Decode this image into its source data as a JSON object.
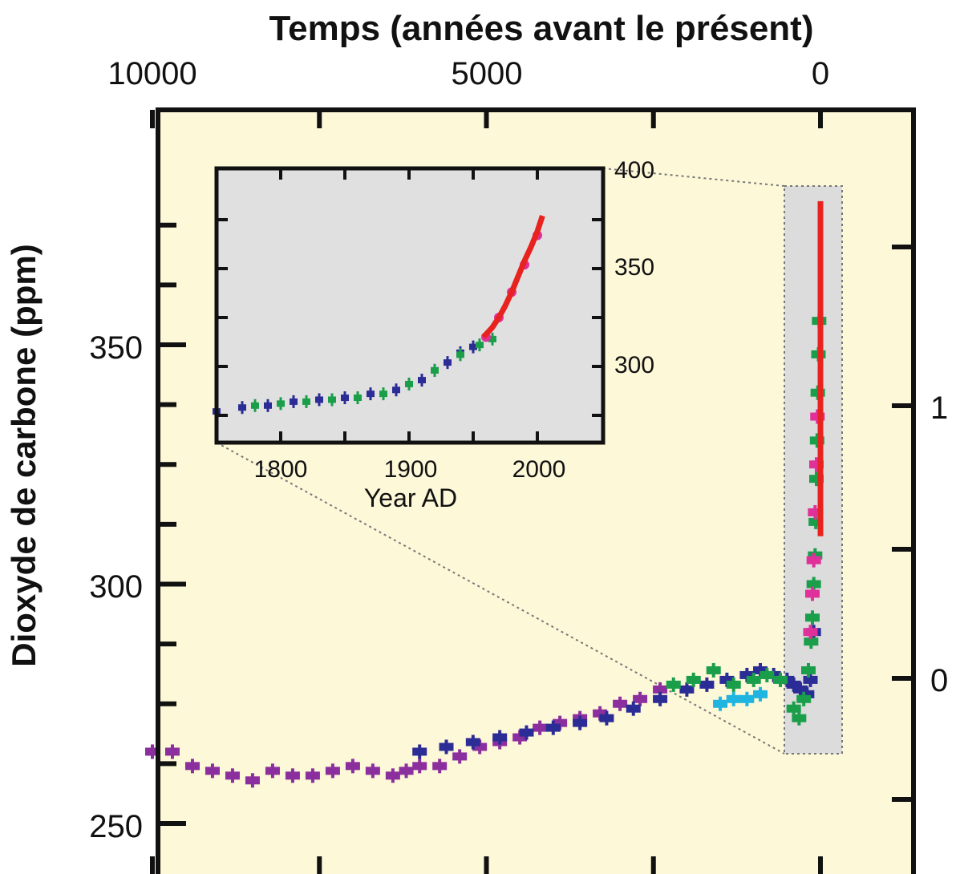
{
  "chart_data": [
    {
      "type": "scatter",
      "title": "Temps (années avant le présent)",
      "ylabel": "Dioxyde de carbone (ppm)",
      "x_ticks": [
        "10000",
        "5000",
        "0"
      ],
      "xlim": [
        10000,
        -300
      ],
      "ylim": [
        245,
        395
      ],
      "y_ticks": [
        "250",
        "300",
        "350"
      ],
      "right_axis": {
        "ticks": [
          "0",
          "1"
        ]
      },
      "background": "#fdf8d8",
      "series": [
        {
          "color": "#8b2f9e",
          "x": [
            10000,
            9700,
            9400,
            9100,
            8800,
            8500,
            8200,
            7900,
            7600,
            7300,
            7000,
            6700,
            6400,
            6200,
            6000,
            5700,
            5400,
            5100,
            4800,
            4500,
            4200,
            3900,
            3600,
            3300,
            3000,
            2700,
            2400
          ],
          "y": [
            265,
            265,
            262,
            261,
            260,
            259,
            261,
            260,
            260,
            261,
            262,
            261,
            260,
            261,
            262,
            262,
            264,
            266,
            267,
            268,
            270,
            271,
            272,
            273,
            275,
            276,
            278
          ]
        },
        {
          "color": "#2b2c96",
          "x": [
            6000,
            5600,
            5200,
            4800,
            4400,
            4000,
            3600,
            3200,
            2800,
            2400,
            2000,
            1700,
            1400,
            1100,
            900,
            700,
            500,
            400,
            300,
            200,
            150,
            100
          ],
          "y": [
            265,
            266,
            267,
            268,
            269,
            270,
            271,
            272,
            274,
            276,
            278,
            279,
            280,
            281,
            282,
            281,
            280,
            279,
            278,
            277,
            280,
            290
          ]
        },
        {
          "color": "#1a9e4a",
          "x": [
            2200,
            1900,
            1600,
            1300,
            1000,
            800,
            600,
            400,
            320,
            250,
            180,
            140,
            120,
            100,
            80,
            70,
            60,
            50,
            40,
            30,
            20
          ],
          "y": [
            279,
            280,
            282,
            279,
            280,
            281,
            280,
            274,
            272,
            276,
            282,
            288,
            293,
            300,
            306,
            313,
            322,
            330,
            340,
            348,
            355
          ]
        },
        {
          "color": "#1fb5e0",
          "x": [
            1500,
            1300,
            1100,
            900
          ],
          "y": [
            275,
            276,
            276,
            277
          ]
        },
        {
          "color": "#e0309a",
          "x": [
            150,
            120,
            100,
            80,
            60,
            45
          ],
          "y": [
            290,
            298,
            305,
            315,
            325,
            335
          ]
        },
        {
          "color": "#e8231f",
          "x": [
            0,
            0,
            0,
            0,
            0
          ],
          "y": [
            310,
            330,
            350,
            370,
            380
          ]
        }
      ]
    },
    {
      "type": "scatter",
      "xlabel": "Year AD",
      "x_ticks": [
        "1800",
        "1900",
        "2000"
      ],
      "y_ticks": [
        "300",
        "350",
        "400"
      ],
      "xlim": [
        1740,
        2050
      ],
      "ylim": [
        270,
        400
      ],
      "background": "#e0e0e0",
      "series": [
        {
          "color": "#2b2c96",
          "x": [
            1750,
            1770,
            1790,
            1810,
            1830,
            1850,
            1870,
            1890,
            1910,
            1920,
            1930,
            1940,
            1950
          ],
          "y": [
            277,
            279,
            280,
            282,
            283,
            284,
            286,
            288,
            293,
            298,
            302,
            307,
            310
          ]
        },
        {
          "color": "#1a9e4a",
          "x": [
            1780,
            1800,
            1820,
            1840,
            1860,
            1880,
            1900,
            1920,
            1940,
            1955,
            1965
          ],
          "y": [
            280,
            281,
            282,
            283,
            284,
            286,
            291,
            298,
            306,
            311,
            314
          ]
        },
        {
          "color": "#e0309a",
          "x": [
            1960,
            1970,
            1980,
            1990,
            2000
          ],
          "y": [
            315,
            325,
            338,
            352,
            367
          ]
        },
        {
          "color": "#e8231f",
          "x": [
            1958,
            1965,
            1970,
            1975,
            1980,
            1985,
            1990,
            1995,
            2000,
            2004
          ],
          "y": [
            315,
            320,
            325,
            331,
            338,
            346,
            354,
            361,
            369,
            377
          ]
        }
      ]
    }
  ]
}
